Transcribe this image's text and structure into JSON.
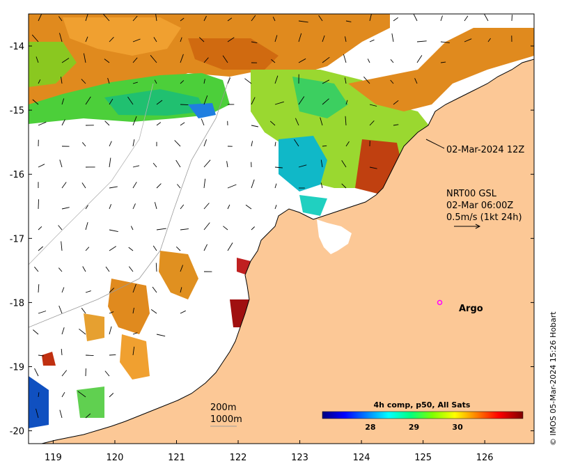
{
  "map": {
    "lon_range": [
      118.6,
      126.8
    ],
    "lat_range": [
      -20.2,
      -13.5
    ],
    "x_ticks": [
      {
        "value": 119,
        "label": "119"
      },
      {
        "value": 120,
        "label": "120"
      },
      {
        "value": 121,
        "label": "121"
      },
      {
        "value": 122,
        "label": "122"
      },
      {
        "value": 123,
        "label": "123"
      },
      {
        "value": 124,
        "label": "124"
      },
      {
        "value": 125,
        "label": "125"
      },
      {
        "value": 126,
        "label": "126"
      }
    ],
    "y_ticks": [
      {
        "value": -14,
        "label": "-14"
      },
      {
        "value": -15,
        "label": "-15"
      },
      {
        "value": -16,
        "label": "-16"
      },
      {
        "value": -17,
        "label": "-17"
      },
      {
        "value": -18,
        "label": "-18"
      },
      {
        "value": -19,
        "label": "-19"
      },
      {
        "value": -20,
        "label": "-20"
      }
    ],
    "land_color": "#fcc896",
    "no_data_color": "#ffffff"
  },
  "annotations": {
    "sst_time": "02-Mar-2024 12Z",
    "current_source": "NRT00 GSL",
    "current_time": "02-Mar 06:00Z",
    "current_scale": "0.5m/s (1kt 24h)",
    "argo_label": "Argo",
    "argo_position": {
      "lon": 125.27,
      "lat": -18.0
    },
    "argo_color": "#ff00ff",
    "isobath_200": "200m",
    "isobath_1000": "1000m"
  },
  "colorbar": {
    "title": "4h comp, p50, All Sats",
    "range": [
      26.9,
      31.5
    ],
    "ticks": [
      {
        "value": 28,
        "label": "28"
      },
      {
        "value": 29,
        "label": "29"
      },
      {
        "value": 30,
        "label": "30"
      }
    ],
    "colors": [
      "#00007f",
      "#0000ff",
      "#007fff",
      "#00ffff",
      "#00ff7f",
      "#7fff00",
      "#ffff00",
      "#ff7f00",
      "#ff0000",
      "#7f0000"
    ]
  },
  "credit": "© IMOS 05-Mar-2024 15:26 Hobart"
}
